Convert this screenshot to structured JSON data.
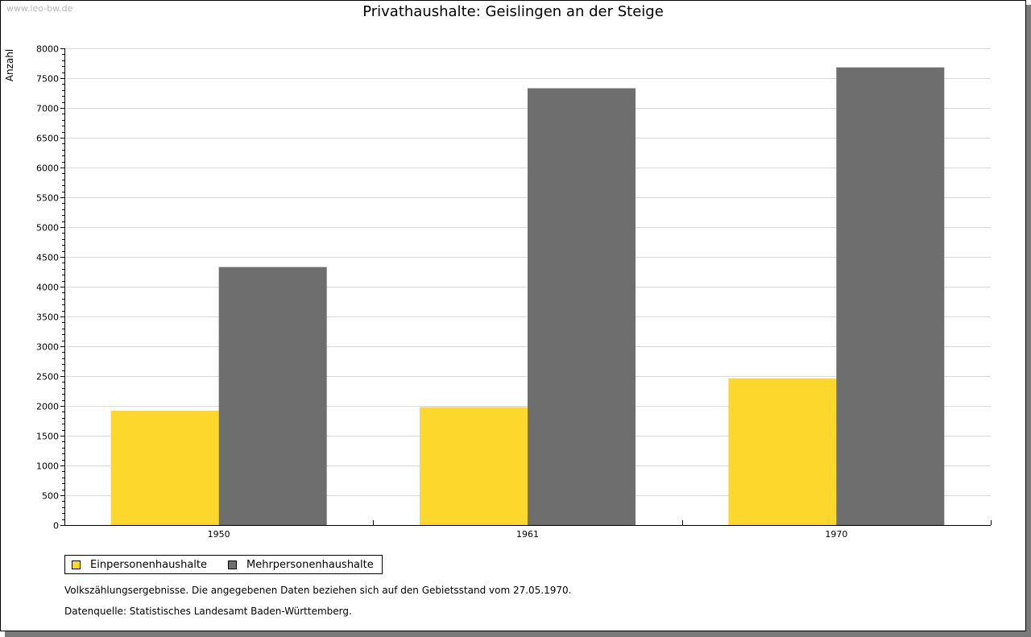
{
  "watermark": "www.leo-bw.de",
  "title": "Privathaushalte: Geislingen an der Steige",
  "chart_data": {
    "type": "bar",
    "title": "Privathaushalte: Geislingen an der Steige",
    "ylabel": "Anzahl",
    "xlabel": "",
    "categories": [
      "1950",
      "1961",
      "1970"
    ],
    "series": [
      {
        "name": "Einpersonenhaushalte",
        "values": [
          1920,
          1980,
          2460
        ],
        "color": "#fdd72b"
      },
      {
        "name": "Mehrpersonenhaushalte",
        "values": [
          4330,
          7330,
          7680
        ],
        "color": "#6e6e6e"
      }
    ],
    "ylim": [
      0,
      8000
    ],
    "yticks": [
      0,
      500,
      1000,
      1500,
      2000,
      2500,
      3000,
      3500,
      4000,
      4500,
      5000,
      5500,
      6000,
      6500,
      7000,
      7500,
      8000
    ],
    "grid": true,
    "legend_position": "bottom-left"
  },
  "notes": {
    "line1": "Volkszählungsergebnisse. Die angegebenen Daten beziehen sich auf den Gebietsstand vom 27.05.1970.",
    "line2": "Datenquelle: Statistisches Landesamt Baden-Württemberg."
  }
}
